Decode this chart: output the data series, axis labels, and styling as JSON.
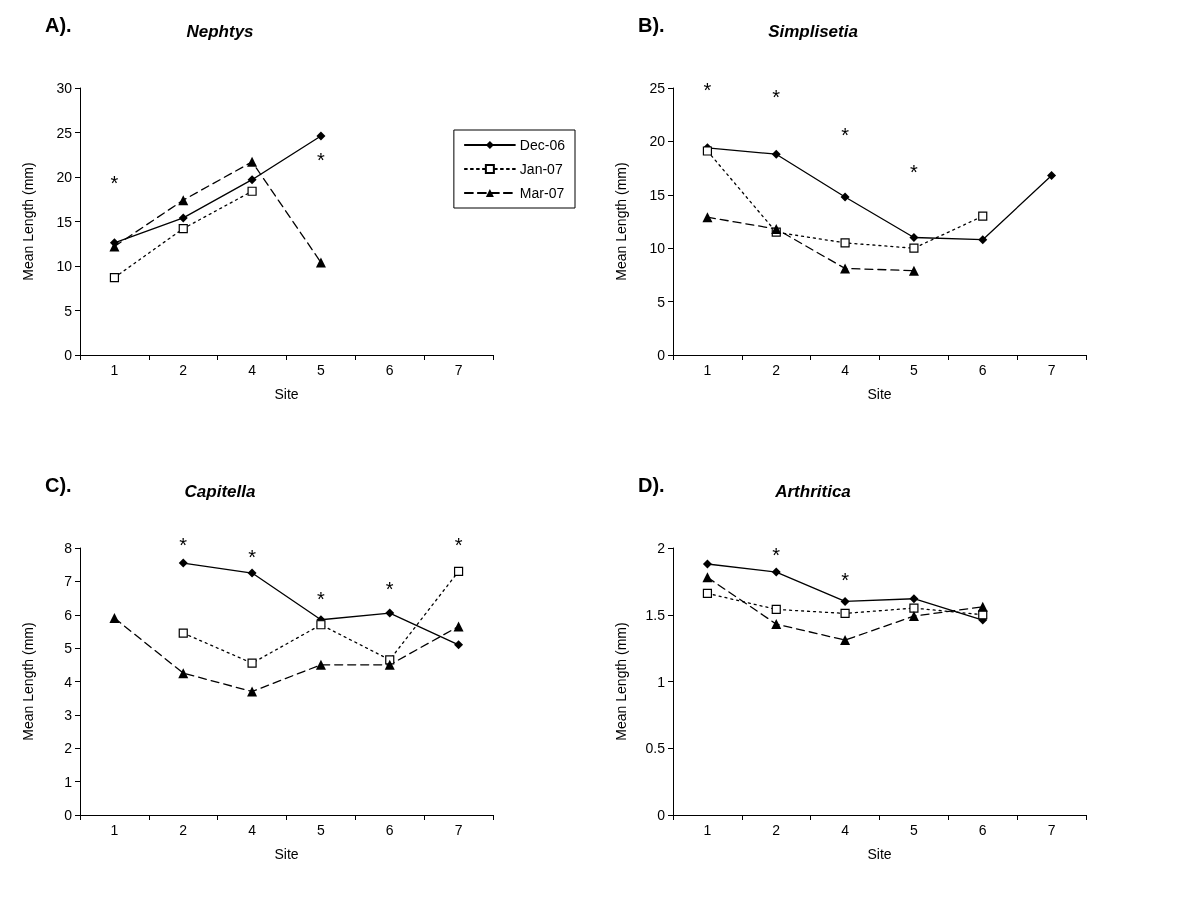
{
  "chart_data": [
    {
      "type": "line",
      "title": "Nephtys",
      "xlabel": "Site",
      "ylabel": "Mean Length (mm)",
      "categories": [
        "1",
        "2",
        "4",
        "5",
        "6",
        "7"
      ],
      "ylim": [
        0,
        30
      ],
      "yticks": [
        0,
        5,
        10,
        15,
        20,
        25,
        30
      ],
      "legend": "right",
      "series": [
        {
          "name": "Dec-06",
          "color": "#000000",
          "marker": "diamond",
          "line_style": "solid",
          "values": [
            12.6,
            15.4,
            19.7,
            24.6,
            null,
            null
          ]
        },
        {
          "name": "Jan-07",
          "color": "#000000",
          "marker": "square",
          "line_style": "dotted",
          "values": [
            8.7,
            14.2,
            18.4,
            null,
            null,
            null
          ]
        },
        {
          "name": "Mar-07",
          "color": "#000000",
          "marker": "triangle",
          "line_style": "dashed",
          "values": [
            12.2,
            17.4,
            21.7,
            10.4,
            null,
            null
          ]
        }
      ],
      "annotations": [
        "A).",
        "*",
        "*"
      ]
    },
    {
      "type": "line",
      "title": "Simplisetia",
      "xlabel": "Site",
      "ylabel": "Mean Length (mm)",
      "categories": [
        "1",
        "2",
        "4",
        "5",
        "6",
        "7"
      ],
      "ylim": [
        0,
        25
      ],
      "yticks": [
        0,
        5,
        10,
        15,
        20,
        25
      ],
      "legend": false,
      "series": [
        {
          "color": "#000000",
          "marker": "diamond",
          "line_style": "solid",
          "values": [
            19.4,
            18.8,
            14.8,
            11.0,
            10.8,
            16.8
          ]
        },
        {
          "color": "#000000",
          "marker": "square",
          "line_style": "dotted",
          "values": [
            19.1,
            11.5,
            10.5,
            10.0,
            13.0,
            null
          ]
        },
        {
          "color": "#000000",
          "marker": "triangle",
          "line_style": "dashed",
          "values": [
            12.9,
            11.8,
            8.1,
            7.9,
            null,
            null
          ]
        }
      ],
      "annotations": [
        "B).",
        "*",
        "*",
        "*",
        "*"
      ]
    },
    {
      "type": "line",
      "title": "Capitella",
      "xlabel": "Site",
      "ylabel": "Mean Length (mm)",
      "categories": [
        "1",
        "2",
        "4",
        "5",
        "6",
        "7"
      ],
      "ylim": [
        0,
        8
      ],
      "yticks": [
        0,
        1,
        2,
        3,
        4,
        5,
        6,
        7,
        8
      ],
      "legend": false,
      "series": [
        {
          "color": "#000000",
          "marker": "diamond",
          "line_style": "solid",
          "values": [
            null,
            7.55,
            7.25,
            5.85,
            6.05,
            5.1
          ]
        },
        {
          "color": "#000000",
          "marker": "square",
          "line_style": "dotted",
          "values": [
            null,
            5.45,
            4.55,
            5.7,
            4.65,
            7.3
          ]
        },
        {
          "color": "#000000",
          "marker": "triangle",
          "line_style": "dashed",
          "values": [
            5.9,
            4.25,
            3.7,
            4.5,
            4.5,
            5.65
          ]
        }
      ],
      "annotations": [
        "C).",
        "*",
        "*",
        "*",
        "*",
        "*"
      ]
    },
    {
      "type": "line",
      "title": "Arthritica",
      "xlabel": "Site",
      "ylabel": "Mean Length (mm)",
      "categories": [
        "1",
        "2",
        "4",
        "5",
        "6",
        "7"
      ],
      "ylim": [
        0,
        2
      ],
      "yticks": [
        0,
        0.5,
        1,
        1.5,
        2
      ],
      "legend": false,
      "series": [
        {
          "color": "#000000",
          "marker": "diamond",
          "line_style": "solid",
          "values": [
            1.88,
            1.82,
            1.6,
            1.62,
            1.46,
            null
          ]
        },
        {
          "color": "#000000",
          "marker": "square",
          "line_style": "dotted",
          "values": [
            1.66,
            1.54,
            1.51,
            1.55,
            1.5,
            null
          ]
        },
        {
          "color": "#000000",
          "marker": "triangle",
          "line_style": "dashed",
          "values": [
            1.78,
            1.43,
            1.31,
            1.49,
            1.56,
            null
          ]
        }
      ],
      "annotations": [
        "D).",
        "*",
        "*"
      ]
    }
  ]
}
